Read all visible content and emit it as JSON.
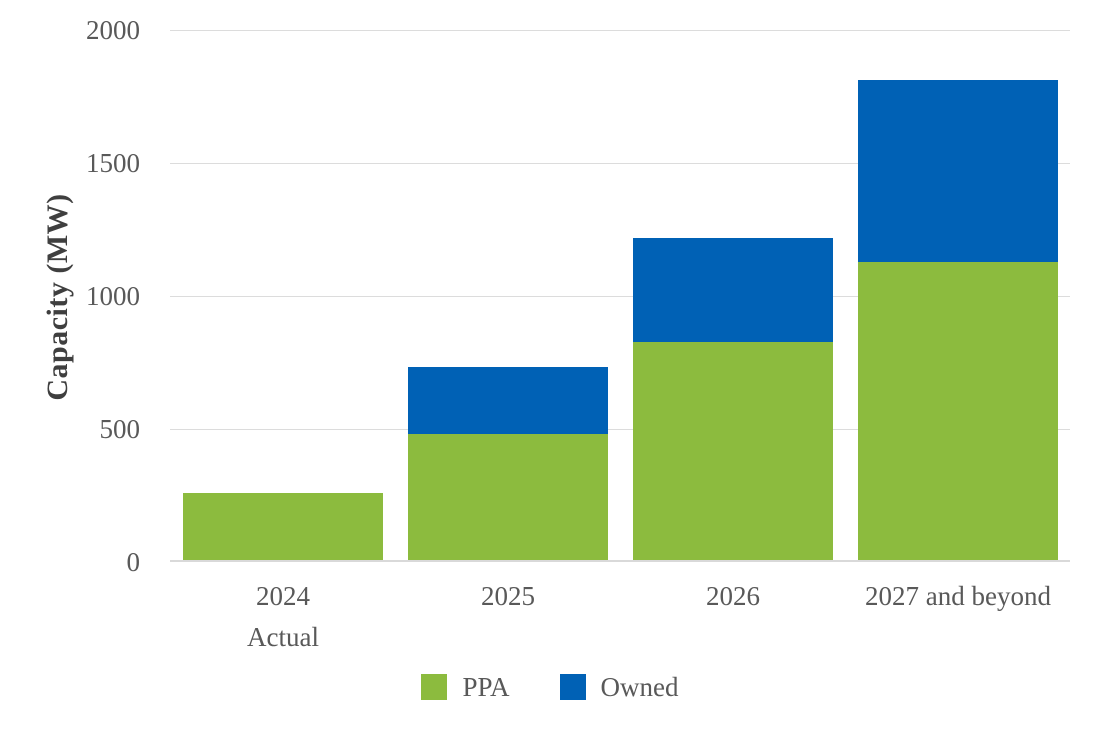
{
  "chart_data": {
    "type": "bar",
    "stacked": true,
    "title": "",
    "xlabel": "",
    "ylabel": "Capacity (MW)",
    "ylim": [
      0,
      2000
    ],
    "yticks": [
      0,
      500,
      1000,
      1500,
      2000
    ],
    "grid": "horizontal",
    "legend_position": "bottom",
    "categories": [
      "2024 Actual",
      "2025",
      "2026",
      "2027 and beyond"
    ],
    "category_lines": [
      [
        "2024",
        "Actual"
      ],
      [
        "2025"
      ],
      [
        "2026"
      ],
      [
        "2027 and beyond"
      ]
    ],
    "series": [
      {
        "name": "PPA",
        "color": "#8CBB3E",
        "values": [
          250,
          475,
          820,
          1120
        ]
      },
      {
        "name": "Owned",
        "color": "#0061B5",
        "values": [
          0,
          250,
          390,
          685
        ]
      }
    ],
    "totals": [
      250,
      725,
      1210,
      1805
    ],
    "grid_color": "#DCDCDC",
    "text_color": "#595959",
    "axis_title_color": "#3F3F3F",
    "background_color": "#FFFFFF"
  }
}
